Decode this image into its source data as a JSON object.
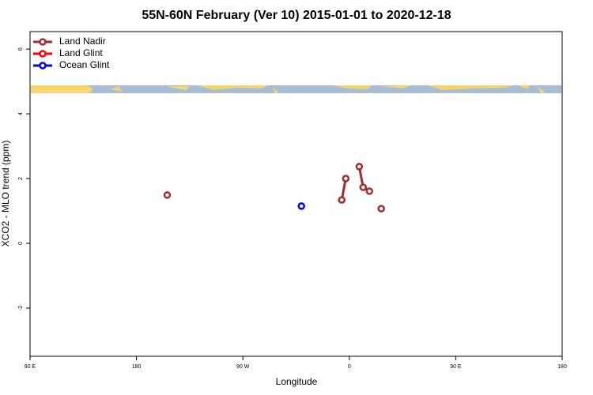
{
  "chart_data": {
    "type": "line",
    "title": "55N-60N February (Ver 10)   2015-01-01 to 2020-12-18",
    "xlabel": "Longitude",
    "ylabel": "XCO2 - MLO trend (ppm)",
    "xlim": [
      90,
      540
    ],
    "ylim": [
      -3.49,
      6.54
    ],
    "xticks": [
      {
        "value": 90,
        "label": "90 E"
      },
      180,
      {
        "value": 270,
        "label": "90 W"
      },
      {
        "value": 360,
        "label": "0"
      },
      {
        "value": 450,
        "label": "90 E"
      },
      {
        "value": 540,
        "label": "180"
      }
    ],
    "yticks": [
      -2,
      0,
      2,
      4,
      6
    ],
    "legend": "top-left",
    "series": [
      {
        "name": "Land Nadir",
        "color": "#a52a2a",
        "x": [
          206,
          null,
          353.6,
          357,
          null,
          368.4,
          371.7,
          377,
          null,
          387
        ],
        "values": [
          1.49,
          null,
          1.34,
          2.0,
          null,
          2.37,
          1.73,
          1.61,
          null,
          1.07
        ]
      },
      {
        "name": "Land Glint",
        "color": "#ff0000",
        "x": [],
        "values": []
      },
      {
        "name": "Ocean Glint",
        "color": "#0000ff",
        "x": [
          319.5
        ],
        "values": [
          1.15
        ]
      }
    ]
  }
}
